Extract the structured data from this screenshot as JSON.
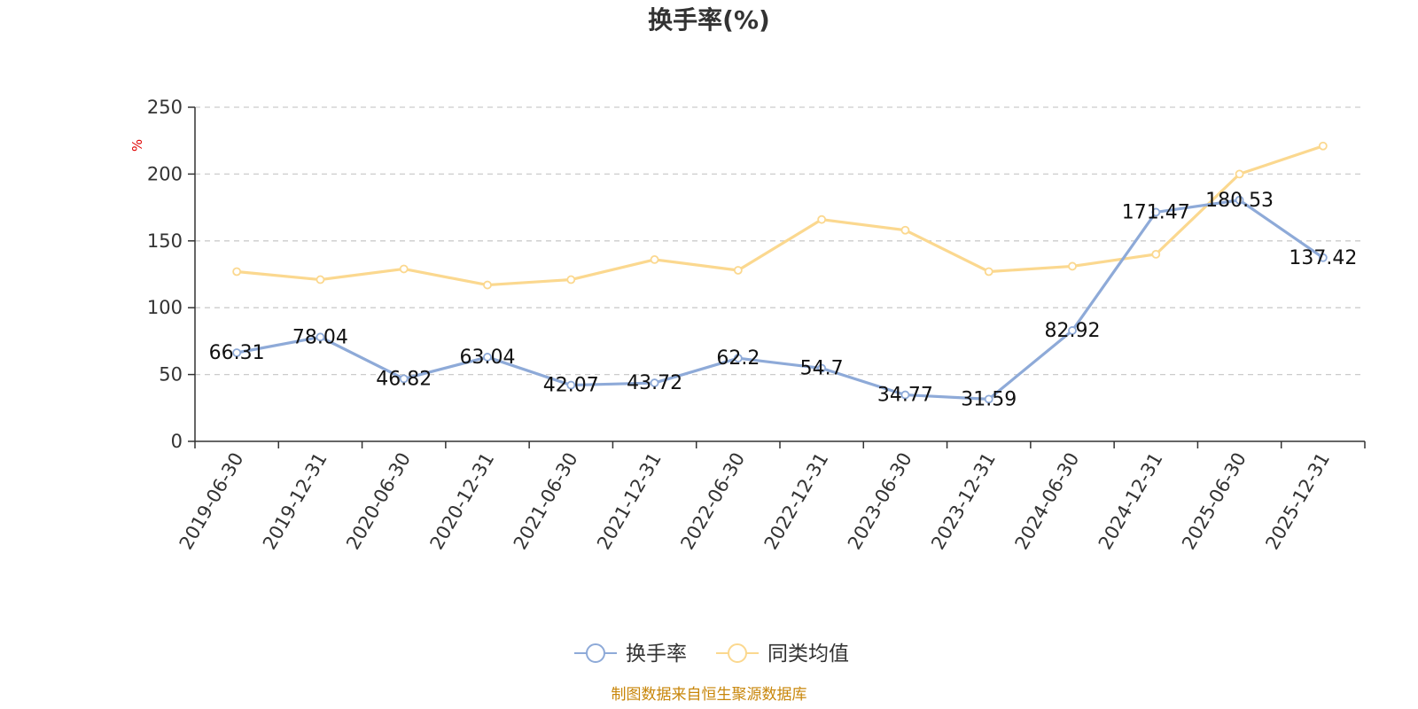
{
  "chart_data": {
    "type": "line",
    "title": "换手率(%)",
    "ylabel": "%",
    "xlabel": "",
    "ylim": [
      0,
      250
    ],
    "yticks": [
      0,
      50,
      100,
      150,
      200,
      250
    ],
    "grid": true,
    "categories": [
      "2019-06-30",
      "2019-12-31",
      "2020-06-30",
      "2020-12-31",
      "2021-06-30",
      "2021-12-31",
      "2022-06-30",
      "2022-12-31",
      "2023-06-30",
      "2023-12-31",
      "2024-06-30",
      "2024-12-31",
      "2025-06-30",
      "2025-12-31"
    ],
    "series": [
      {
        "name": "换手率",
        "color": "#8eaad8",
        "values": [
          66.31,
          78.04,
          46.82,
          63.04,
          42.07,
          43.72,
          62.2,
          54.7,
          34.77,
          31.59,
          82.92,
          171.47,
          180.53,
          137.42
        ],
        "labels": [
          "66.31",
          "78.04",
          "46.82",
          "63.04",
          "42.07",
          "43.72",
          "62.2",
          "54.7",
          "34.77",
          "31.59",
          "82.92",
          "171.47",
          "180.53",
          "137.42"
        ]
      },
      {
        "name": "同类均值",
        "color": "#fbd88f",
        "values": [
          127,
          121,
          129,
          117,
          121,
          136,
          128,
          166,
          158,
          127,
          131,
          140,
          200,
          221
        ]
      }
    ],
    "legend_position": "bottom-center",
    "source": "制图数据来自恒生聚源数据库"
  }
}
